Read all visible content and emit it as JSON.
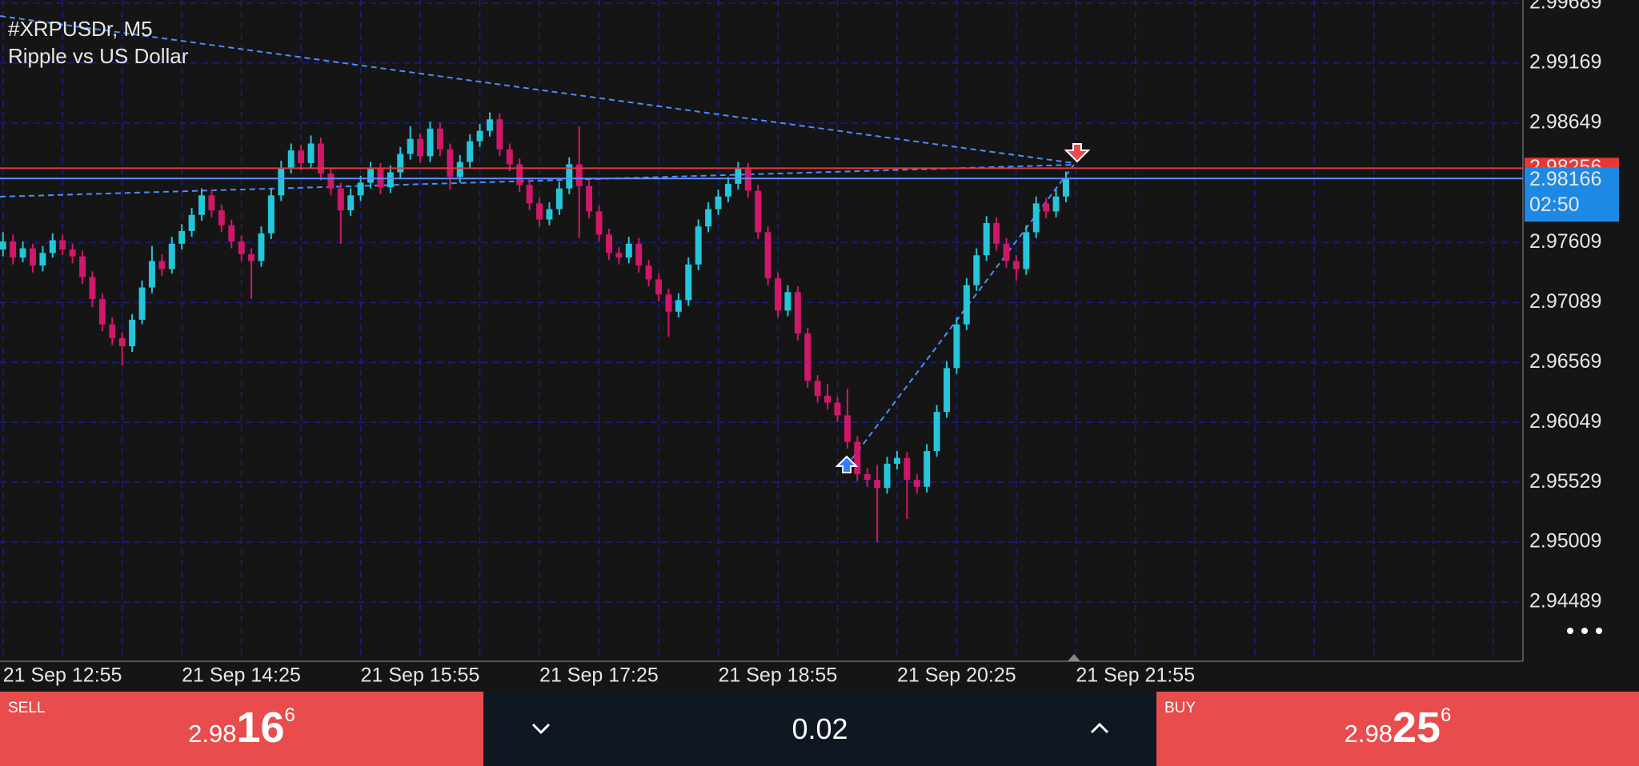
{
  "chart_data": {
    "type": "candlestick",
    "title": "#XRPUSDr, M5",
    "subtitle": "Ripple vs US Dollar",
    "up_color": "#26c6da",
    "down_color": "#d0186a",
    "grid": true,
    "ylim": [
      2.93975,
      2.99716
    ],
    "yticks": [
      2.99689,
      2.99169,
      2.98649,
      2.97609,
      2.97089,
      2.96569,
      2.96049,
      2.95529,
      2.95009,
      2.94489
    ],
    "xlim": [
      -0.3,
      153
    ],
    "xticks": [
      {
        "value": 0,
        "label": "21 Sep 12:55"
      },
      {
        "value": 18,
        "label": "21 Sep 14:25"
      },
      {
        "value": 36,
        "label": "21 Sep 15:55"
      },
      {
        "value": 54,
        "label": "21 Sep 17:25"
      },
      {
        "value": 72,
        "label": "21 Sep 18:55"
      },
      {
        "value": 90,
        "label": "21 Sep 20:25"
      },
      {
        "value": 108,
        "label": "21 Sep 21:55"
      }
    ],
    "xminor": [
      6,
      12,
      24,
      30,
      42,
      48,
      60,
      66,
      78,
      84,
      96,
      102,
      114,
      120,
      126,
      132,
      138,
      144,
      150
    ],
    "bid": 2.98166,
    "ask": 2.98256,
    "countdown": "02:50",
    "ohlc": [
      [
        2.9755,
        2.977,
        2.9749,
        2.9762
      ],
      [
        2.9762,
        2.9768,
        2.9742,
        2.9748
      ],
      [
        2.9748,
        2.9762,
        2.9744,
        2.9756
      ],
      [
        2.9756,
        2.976,
        2.9735,
        2.9741
      ],
      [
        2.9741,
        2.9758,
        2.9736,
        2.9752
      ],
      [
        2.9752,
        2.9769,
        2.9748,
        2.9763
      ],
      [
        2.9763,
        2.9768,
        2.975,
        2.9755
      ],
      [
        2.9755,
        2.976,
        2.9743,
        2.9749
      ],
      [
        2.9749,
        2.9754,
        2.9725,
        2.9731
      ],
      [
        2.9731,
        2.9736,
        2.9705,
        2.9712
      ],
      [
        2.9712,
        2.9717,
        2.9684,
        2.969
      ],
      [
        2.969,
        2.9696,
        2.9672,
        2.9678
      ],
      [
        2.9678,
        2.9683,
        2.9654,
        2.9671
      ],
      [
        2.9671,
        2.9699,
        2.9666,
        2.9694
      ],
      [
        2.9694,
        2.9728,
        2.969,
        2.9722
      ],
      [
        2.9722,
        2.9758,
        2.9717,
        2.9745
      ],
      [
        2.9745,
        2.9751,
        2.9732,
        2.9738
      ],
      [
        2.9738,
        2.9766,
        2.9734,
        2.976
      ],
      [
        2.976,
        2.9777,
        2.9755,
        2.9771
      ],
      [
        2.9771,
        2.9791,
        2.9766,
        2.9785
      ],
      [
        2.9785,
        2.9808,
        2.978,
        2.9802
      ],
      [
        2.9802,
        2.9807,
        2.9783,
        2.9789
      ],
      [
        2.9789,
        2.9794,
        2.977,
        2.9776
      ],
      [
        2.9776,
        2.9781,
        2.9756,
        2.9762
      ],
      [
        2.9762,
        2.9767,
        2.9745,
        2.9751
      ],
      [
        2.9751,
        2.9756,
        2.9712,
        2.9745
      ],
      [
        2.9745,
        2.9775,
        2.974,
        2.9769
      ],
      [
        2.9769,
        2.9808,
        2.9764,
        2.9802
      ],
      [
        2.9802,
        2.9832,
        2.9797,
        2.9826
      ],
      [
        2.9826,
        2.9847,
        2.9821,
        2.9841
      ],
      [
        2.9841,
        2.9846,
        2.9824,
        2.983
      ],
      [
        2.983,
        2.9854,
        2.9826,
        2.9847
      ],
      [
        2.9847,
        2.9852,
        2.9815,
        2.9821
      ],
      [
        2.9821,
        2.9826,
        2.9802,
        2.9808
      ],
      [
        2.9808,
        2.9813,
        2.976,
        2.9789
      ],
      [
        2.9789,
        2.9808,
        2.9784,
        2.9802
      ],
      [
        2.9802,
        2.9819,
        2.9797,
        2.9813
      ],
      [
        2.9813,
        2.9831,
        2.9808,
        2.9825
      ],
      [
        2.9825,
        2.983,
        2.9803,
        2.9809
      ],
      [
        2.9809,
        2.9828,
        2.9804,
        2.9822
      ],
      [
        2.9822,
        2.9844,
        2.9817,
        2.9838
      ],
      [
        2.9838,
        2.9862,
        2.9833,
        2.9851
      ],
      [
        2.9851,
        2.9856,
        2.983,
        2.9836
      ],
      [
        2.9836,
        2.9866,
        2.9831,
        2.986
      ],
      [
        2.986,
        2.9865,
        2.9836,
        2.9842
      ],
      [
        2.9842,
        2.9847,
        2.9807,
        2.9818
      ],
      [
        2.9818,
        2.9837,
        2.9813,
        2.9831
      ],
      [
        2.9831,
        2.9855,
        2.9826,
        2.9849
      ],
      [
        2.9849,
        2.9864,
        2.9844,
        2.9858
      ],
      [
        2.9858,
        2.9874,
        2.9853,
        2.9868
      ],
      [
        2.9868,
        2.9873,
        2.9836,
        2.9842
      ],
      [
        2.9842,
        2.9847,
        2.9823,
        2.9829
      ],
      [
        2.9829,
        2.9834,
        2.9805,
        2.9811
      ],
      [
        2.9811,
        2.9816,
        2.9789,
        2.9795
      ],
      [
        2.9795,
        2.98,
        2.9775,
        2.9781
      ],
      [
        2.9781,
        2.9796,
        2.9776,
        2.979
      ],
      [
        2.979,
        2.9814,
        2.9785,
        2.9808
      ],
      [
        2.9808,
        2.9835,
        2.9803,
        2.9829
      ],
      [
        2.9829,
        2.9862,
        2.9765,
        2.981
      ],
      [
        2.981,
        2.9815,
        2.9782,
        2.9788
      ],
      [
        2.9788,
        2.9793,
        2.9762,
        2.9768
      ],
      [
        2.9768,
        2.9773,
        2.9746,
        2.9752
      ],
      [
        2.9752,
        2.9757,
        2.9742,
        2.9748
      ],
      [
        2.9748,
        2.9766,
        2.9743,
        2.976
      ],
      [
        2.976,
        2.9765,
        2.9735,
        2.9741
      ],
      [
        2.9741,
        2.9746,
        2.9723,
        2.9729
      ],
      [
        2.9729,
        2.9734,
        2.971,
        2.9716
      ],
      [
        2.9716,
        2.9721,
        2.9679,
        2.9701
      ],
      [
        2.9701,
        2.9717,
        2.9696,
        2.9711
      ],
      [
        2.9711,
        2.9748,
        2.9706,
        2.9742
      ],
      [
        2.9742,
        2.9781,
        2.9737,
        2.9775
      ],
      [
        2.9775,
        2.9796,
        2.977,
        2.979
      ],
      [
        2.979,
        2.9807,
        2.9785,
        2.9801
      ],
      [
        2.9801,
        2.9818,
        2.9796,
        2.9812
      ],
      [
        2.9812,
        2.9831,
        2.9807,
        2.9825
      ],
      [
        2.9825,
        2.983,
        2.98,
        2.9806
      ],
      [
        2.9806,
        2.9811,
        2.9764,
        2.977
      ],
      [
        2.977,
        2.9775,
        2.9724,
        2.973
      ],
      [
        2.973,
        2.9735,
        2.9696,
        2.9702
      ],
      [
        2.9702,
        2.9724,
        2.9697,
        2.9718
      ],
      [
        2.9718,
        2.9723,
        2.9676,
        2.9682
      ],
      [
        2.9682,
        2.9687,
        2.9635,
        2.9641
      ],
      [
        2.9641,
        2.9646,
        2.9622,
        2.9628
      ],
      [
        2.9628,
        2.9638,
        2.9616,
        2.9622
      ],
      [
        2.9622,
        2.9627,
        2.9605,
        2.9611
      ],
      [
        2.9611,
        2.9634,
        2.9582,
        2.9588
      ],
      [
        2.9588,
        2.9593,
        2.9554,
        2.956
      ],
      [
        2.956,
        2.9565,
        2.9549,
        2.9555
      ],
      [
        2.9555,
        2.9568,
        2.9501,
        2.9548
      ],
      [
        2.9548,
        2.9575,
        2.9543,
        2.9569
      ],
      [
        2.9569,
        2.958,
        2.9564,
        2.9574
      ],
      [
        2.9574,
        2.9579,
        2.9521,
        2.9555
      ],
      [
        2.9555,
        2.956,
        2.9543,
        2.9549
      ],
      [
        2.9549,
        2.9586,
        2.9544,
        2.958
      ],
      [
        2.958,
        2.962,
        2.9575,
        2.9614
      ],
      [
        2.9614,
        2.9658,
        2.9609,
        2.9652
      ],
      [
        2.9652,
        2.9696,
        2.9647,
        2.969
      ],
      [
        2.969,
        2.973,
        2.9685,
        2.9724
      ],
      [
        2.9724,
        2.9756,
        2.9719,
        2.975
      ],
      [
        2.975,
        2.9784,
        2.9745,
        2.9778
      ],
      [
        2.9778,
        2.9783,
        2.9754,
        2.976
      ],
      [
        2.976,
        2.9765,
        2.9739,
        2.9745
      ],
      [
        2.9745,
        2.975,
        2.9728,
        2.9738
      ],
      [
        2.9738,
        2.9776,
        2.9733,
        2.977
      ],
      [
        2.977,
        2.9801,
        2.9765,
        2.9795
      ],
      [
        2.9795,
        2.98,
        2.9782,
        2.9788
      ],
      [
        2.9788,
        2.9807,
        2.9783,
        2.9801
      ],
      [
        2.9801,
        2.98226,
        2.9796,
        2.98166
      ]
    ]
  },
  "trade": {
    "sell": {
      "label": "SELL",
      "price": [
        "2.98",
        "16",
        "6"
      ]
    },
    "lot": "0.02",
    "buy": {
      "label": "BUY",
      "price": [
        "2.98",
        "25",
        "6"
      ]
    }
  }
}
